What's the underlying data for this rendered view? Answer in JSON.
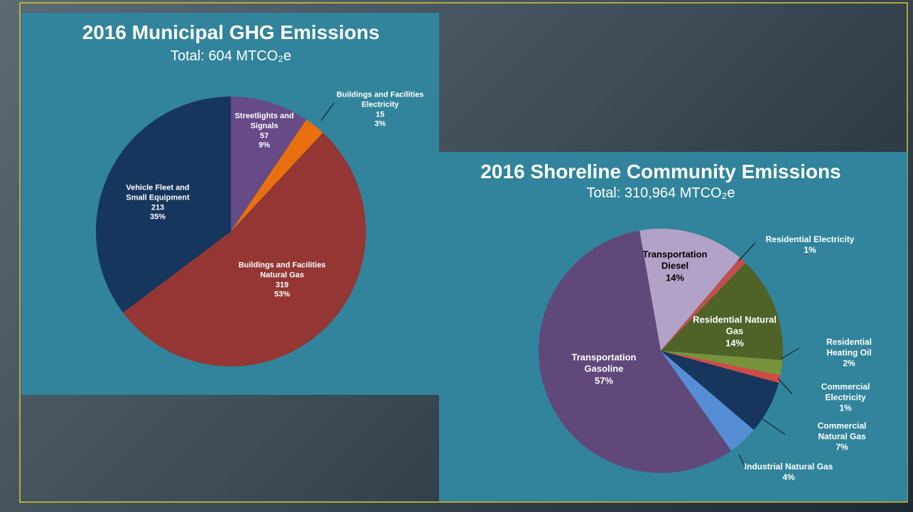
{
  "chart_data": [
    {
      "type": "pie",
      "title": "2016 Municipal GHG Emissions",
      "subtitle": "Total: 604 MTCO₂e",
      "categories": [
        "Streetlights and\nSignals",
        "Buildings and Facilities\nElectricity",
        "Buildings and Facilities\nNatural Gas",
        "Vehicle Fleet and\nSmall Equipment"
      ],
      "values": [
        57,
        15,
        319,
        213
      ],
      "percent_labels": [
        "9%",
        "3%",
        "53%",
        "35%"
      ],
      "colors": [
        "#664b86",
        "#e8700f",
        "#943634",
        "#17365d"
      ]
    },
    {
      "type": "pie",
      "title": "2016 Shoreline Community Emissions",
      "subtitle": "Total: 310,964 MTCO₂e",
      "categories": [
        "Transportation\nDiesel",
        "Residential Electricity",
        "Residential Natural\nGas",
        "Residential Heating Oil",
        "Commercial Electricity",
        "Commercial Natural Gas",
        "Industrial Natural Gas",
        "Transportation\nGasoline"
      ],
      "values": [
        14,
        1,
        14,
        2,
        1,
        7,
        4,
        57
      ],
      "value_labels": [
        "14%",
        "1%",
        "14%",
        "2%",
        "1%",
        "7%",
        "4%",
        "57%"
      ],
      "colors": [
        "#b3a2c7",
        "#c0504d",
        "#4f6228",
        "#77933c",
        "#d24a45",
        "#17365d",
        "#558ed5",
        "#60497a"
      ]
    }
  ]
}
